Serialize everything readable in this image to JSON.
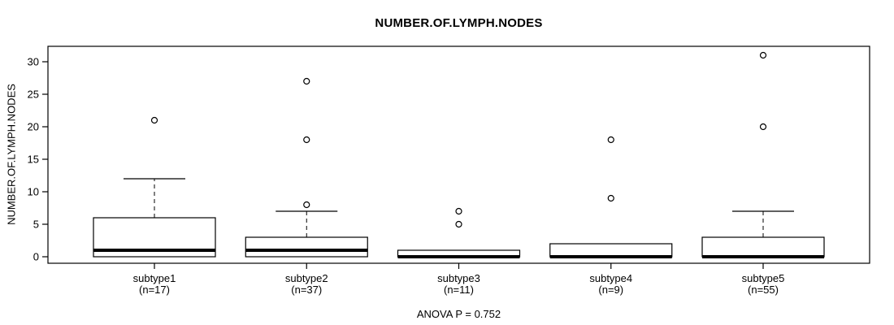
{
  "title": "NUMBER.OF.LYMPH.NODES",
  "chart_data": {
    "type": "boxplot",
    "title": "NUMBER.OF.LYMPH.NODES",
    "ylabel": "NUMBER.OF.LYMPH.NODES",
    "annotation": "ANOVA P = 0.752",
    "xlabel": "",
    "yticks": [
      0,
      5,
      10,
      15,
      20,
      25,
      30
    ],
    "ylim": [
      -1.2,
      32.2
    ],
    "grid": false,
    "legend": "none",
    "stroke_color": "#000000",
    "box_fill_color": "#ffffff",
    "groups": [
      {
        "label": "subtype1",
        "sublabel": "(n=17)",
        "n": 17,
        "q1": 0,
        "median": 1,
        "q3": 6,
        "whisker_low": 0,
        "whisker_high": 12,
        "outliers": [
          21
        ]
      },
      {
        "label": "subtype2",
        "sublabel": "(n=37)",
        "n": 37,
        "q1": 0,
        "median": 1,
        "q3": 3,
        "whisker_low": 0,
        "whisker_high": 7,
        "outliers": [
          8,
          18,
          27
        ]
      },
      {
        "label": "subtype3",
        "sublabel": "(n=11)",
        "n": 11,
        "q1": 0,
        "median": 0,
        "q3": 1,
        "whisker_low": 0,
        "whisker_high": 1,
        "outliers": [
          5,
          7
        ]
      },
      {
        "label": "subtype4",
        "sublabel": "(n=9)",
        "n": 9,
        "q1": 0,
        "median": 0,
        "q3": 2,
        "whisker_low": 0,
        "whisker_high": 2,
        "outliers": [
          9,
          18
        ]
      },
      {
        "label": "subtype5",
        "sublabel": "(n=55)",
        "n": 55,
        "q1": 0,
        "median": 0,
        "q3": 3,
        "whisker_low": 0,
        "whisker_high": 7,
        "outliers": [
          20,
          31
        ]
      }
    ]
  }
}
